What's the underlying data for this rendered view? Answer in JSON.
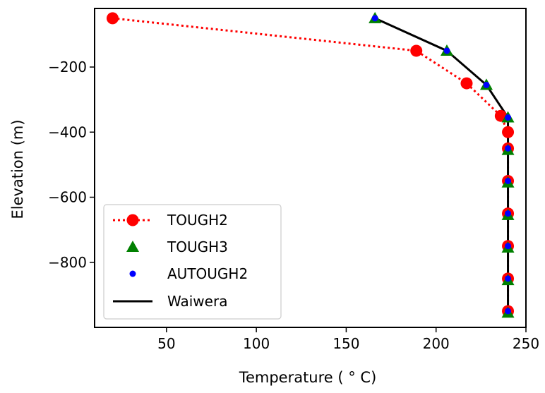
{
  "chart_data": {
    "type": "line",
    "title": "",
    "xlabel": "Temperature ( ° C)",
    "ylabel": "Elevation (m)",
    "xlim": [
      10,
      250
    ],
    "ylim": [
      -1000,
      -20
    ],
    "xticks": [
      50,
      100,
      150,
      200,
      250
    ],
    "yticks": [
      -200,
      -400,
      -600,
      -800
    ],
    "xtick_labels": [
      "50",
      "100",
      "150",
      "200",
      "250"
    ],
    "ytick_labels": [
      "−200",
      "−400",
      "−600",
      "−800"
    ],
    "grid": false,
    "legend_position": "lower-left",
    "series": [
      {
        "name": "TOUGH2",
        "style": "dotted-line-circle",
        "color": "#ff0000",
        "points": [
          [
            20,
            -50
          ],
          [
            189,
            -150
          ],
          [
            217,
            -250
          ],
          [
            236,
            -350
          ],
          [
            240,
            -400
          ],
          [
            240,
            -450
          ],
          [
            240,
            -550
          ],
          [
            240,
            -650
          ],
          [
            240,
            -750
          ],
          [
            240,
            -850
          ],
          [
            240,
            -950
          ]
        ]
      },
      {
        "name": "TOUGH3",
        "style": "triangle",
        "color": "#008000",
        "points": [
          [
            166,
            -50
          ],
          [
            206,
            -150
          ],
          [
            228,
            -255
          ],
          [
            240,
            -355
          ],
          [
            240,
            -455
          ],
          [
            240,
            -555
          ],
          [
            240,
            -655
          ],
          [
            240,
            -755
          ],
          [
            240,
            -855
          ],
          [
            240,
            -955
          ]
        ]
      },
      {
        "name": "AUTOUGH2",
        "style": "dot",
        "color": "#0000ff",
        "points": [
          [
            166,
            -50
          ],
          [
            206,
            -150
          ],
          [
            228,
            -255
          ],
          [
            240,
            -355
          ],
          [
            240,
            -450
          ],
          [
            240,
            -550
          ],
          [
            240,
            -650
          ],
          [
            240,
            -750
          ],
          [
            240,
            -850
          ],
          [
            240,
            -950
          ]
        ]
      },
      {
        "name": "Waiwera",
        "style": "solid-line",
        "color": "#000000",
        "points": [
          [
            166,
            -50
          ],
          [
            206,
            -150
          ],
          [
            228,
            -255
          ],
          [
            240,
            -355
          ],
          [
            240,
            -450
          ],
          [
            240,
            -550
          ],
          [
            240,
            -650
          ],
          [
            240,
            -750
          ],
          [
            240,
            -850
          ],
          [
            240,
            -950
          ]
        ]
      }
    ]
  }
}
